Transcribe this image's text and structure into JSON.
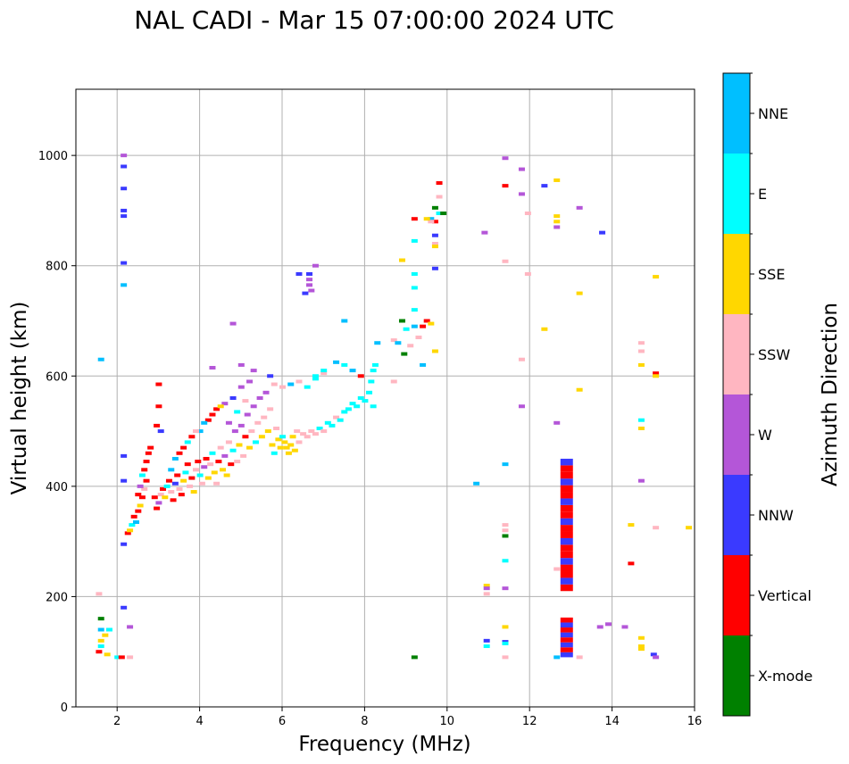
{
  "chart_data": {
    "type": "scatter",
    "title": "NAL CADI - Mar 15 07:00:00 2024 UTC",
    "xlabel": "Frequency (MHz)",
    "ylabel": "Virtual height (km)",
    "xlim": [
      1,
      16
    ],
    "ylim": [
      0,
      1120
    ],
    "xticks": [
      2,
      4,
      6,
      8,
      10,
      12,
      14,
      16
    ],
    "yticks": [
      0,
      200,
      400,
      600,
      800,
      1000
    ],
    "grid": true,
    "colorbar": {
      "title": "Azimuth Direction",
      "entries": [
        {
          "label": "X-mode",
          "color": "#008000"
        },
        {
          "label": "Vertical",
          "color": "#ff0000"
        },
        {
          "label": "NNW",
          "color": "#3a3aff"
        },
        {
          "label": "W",
          "color": "#b456d8"
        },
        {
          "label": "SSW",
          "color": "#ffb6c1"
        },
        {
          "label": "SSE",
          "color": "#ffd700"
        },
        {
          "label": "E",
          "color": "#00ffff"
        },
        {
          "label": "NNE",
          "color": "#00bfff"
        }
      ]
    },
    "points": [
      [
        1.55,
        100,
        "Vertical"
      ],
      [
        1.6,
        110,
        "E"
      ],
      [
        1.6,
        120,
        "SSE"
      ],
      [
        1.6,
        140,
        "NNE"
      ],
      [
        1.6,
        160,
        "X-mode"
      ],
      [
        1.55,
        205,
        "SSW"
      ],
      [
        1.6,
        630,
        "NNE"
      ],
      [
        1.75,
        95,
        "SSE"
      ],
      [
        1.8,
        140,
        "E"
      ],
      [
        1.7,
        130,
        "SSE"
      ],
      [
        2.0,
        90,
        "E"
      ],
      [
        2.1,
        90,
        "Vertical"
      ],
      [
        2.15,
        180,
        "NNW"
      ],
      [
        2.3,
        145,
        "W"
      ],
      [
        2.3,
        90,
        "SSW"
      ],
      [
        2.15,
        1000,
        "W"
      ],
      [
        2.15,
        980,
        "NNW"
      ],
      [
        2.15,
        940,
        "NNW"
      ],
      [
        2.15,
        900,
        "NNW"
      ],
      [
        2.15,
        890,
        "NNW"
      ],
      [
        2.15,
        805,
        "NNW"
      ],
      [
        2.15,
        765,
        "NNE"
      ],
      [
        2.15,
        455,
        "NNW"
      ],
      [
        2.15,
        410,
        "NNW"
      ],
      [
        2.15,
        295,
        "NNW"
      ],
      [
        2.25,
        315,
        "Vertical"
      ],
      [
        2.3,
        320,
        "SSE"
      ],
      [
        2.35,
        330,
        "E"
      ],
      [
        2.4,
        345,
        "Vertical"
      ],
      [
        2.45,
        335,
        "NNE"
      ],
      [
        2.5,
        355,
        "Vertical"
      ],
      [
        2.55,
        365,
        "SSE"
      ],
      [
        2.6,
        380,
        "Vertical"
      ],
      [
        2.65,
        395,
        "SSW"
      ],
      [
        2.7,
        410,
        "Vertical"
      ],
      [
        2.65,
        430,
        "Vertical"
      ],
      [
        2.7,
        445,
        "Vertical"
      ],
      [
        2.75,
        460,
        "Vertical"
      ],
      [
        2.8,
        470,
        "Vertical"
      ],
      [
        2.6,
        420,
        "E"
      ],
      [
        2.55,
        400,
        "W"
      ],
      [
        2.5,
        385,
        "Vertical"
      ],
      [
        2.9,
        380,
        "Vertical"
      ],
      [
        2.95,
        360,
        "Vertical"
      ],
      [
        3.0,
        370,
        "W"
      ],
      [
        3.05,
        385,
        "SSW"
      ],
      [
        3.1,
        395,
        "Vertical"
      ],
      [
        3.15,
        380,
        "SSE"
      ],
      [
        3.2,
        400,
        "E"
      ],
      [
        3.25,
        410,
        "Vertical"
      ],
      [
        3.3,
        390,
        "SSW"
      ],
      [
        3.35,
        375,
        "Vertical"
      ],
      [
        3.4,
        405,
        "NNW"
      ],
      [
        3.45,
        420,
        "Vertical"
      ],
      [
        3.5,
        395,
        "SSW"
      ],
      [
        3.55,
        385,
        "Vertical"
      ],
      [
        3.6,
        410,
        "SSE"
      ],
      [
        3.65,
        425,
        "E"
      ],
      [
        3.7,
        440,
        "Vertical"
      ],
      [
        3.75,
        400,
        "SSW"
      ],
      [
        3.8,
        415,
        "Vertical"
      ],
      [
        3.85,
        390,
        "SSE"
      ],
      [
        3.9,
        430,
        "SSW"
      ],
      [
        3.95,
        445,
        "Vertical"
      ],
      [
        4.0,
        420,
        "E"
      ],
      [
        4.05,
        405,
        "SSW"
      ],
      [
        4.1,
        435,
        "W"
      ],
      [
        4.15,
        450,
        "Vertical"
      ],
      [
        4.2,
        415,
        "SSE"
      ],
      [
        4.25,
        440,
        "SSW"
      ],
      [
        4.3,
        460,
        "E"
      ],
      [
        4.35,
        425,
        "SSE"
      ],
      [
        4.4,
        405,
        "SSW"
      ],
      [
        4.45,
        445,
        "Vertical"
      ],
      [
        4.5,
        470,
        "SSW"
      ],
      [
        4.55,
        430,
        "SSE"
      ],
      [
        4.6,
        455,
        "W"
      ],
      [
        4.65,
        420,
        "SSE"
      ],
      [
        4.7,
        480,
        "SSW"
      ],
      [
        4.75,
        440,
        "Vertical"
      ],
      [
        4.8,
        465,
        "E"
      ],
      [
        4.85,
        500,
        "W"
      ],
      [
        4.9,
        445,
        "SSW"
      ],
      [
        4.95,
        475,
        "SSE"
      ],
      [
        5.0,
        510,
        "W"
      ],
      [
        5.05,
        455,
        "SSW"
      ],
      [
        5.1,
        490,
        "Vertical"
      ],
      [
        5.15,
        530,
        "W"
      ],
      [
        5.2,
        470,
        "SSE"
      ],
      [
        5.25,
        500,
        "SSW"
      ],
      [
        5.3,
        545,
        "W"
      ],
      [
        5.35,
        480,
        "E"
      ],
      [
        5.4,
        515,
        "SSW"
      ],
      [
        5.45,
        560,
        "W"
      ],
      [
        5.5,
        490,
        "SSE"
      ],
      [
        5.55,
        525,
        "SSW"
      ],
      [
        5.6,
        570,
        "W"
      ],
      [
        5.65,
        500,
        "SSE"
      ],
      [
        5.7,
        540,
        "SSW"
      ],
      [
        5.75,
        475,
        "SSE"
      ],
      [
        5.8,
        460,
        "E"
      ],
      [
        5.85,
        505,
        "SSW"
      ],
      [
        5.9,
        485,
        "SSE"
      ],
      [
        5.95,
        470,
        "SSE"
      ],
      [
        6.0,
        490,
        "E"
      ],
      [
        3.4,
        450,
        "NNE"
      ],
      [
        3.6,
        470,
        "Vertical"
      ],
      [
        3.8,
        490,
        "Vertical"
      ],
      [
        4.0,
        500,
        "NNE"
      ],
      [
        4.2,
        520,
        "Vertical"
      ],
      [
        4.4,
        540,
        "Vertical"
      ],
      [
        4.6,
        550,
        "W"
      ],
      [
        4.8,
        560,
        "NNW"
      ],
      [
        5.0,
        580,
        "W"
      ],
      [
        5.2,
        590,
        "W"
      ],
      [
        3.3,
        430,
        "NNE"
      ],
      [
        3.5,
        460,
        "Vertical"
      ],
      [
        3.7,
        480,
        "E"
      ],
      [
        3.9,
        500,
        "SSW"
      ],
      [
        4.1,
        515,
        "NNE"
      ],
      [
        4.3,
        530,
        "Vertical"
      ],
      [
        4.5,
        545,
        "SSE"
      ],
      [
        4.7,
        515,
        "W"
      ],
      [
        4.9,
        535,
        "E"
      ],
      [
        5.1,
        555,
        "SSW"
      ],
      [
        3.0,
        585,
        "Vertical"
      ],
      [
        3.0,
        545,
        "Vertical"
      ],
      [
        2.95,
        510,
        "Vertical"
      ],
      [
        3.05,
        500,
        "NNW"
      ],
      [
        4.3,
        615,
        "W"
      ],
      [
        5.0,
        620,
        "W"
      ],
      [
        5.3,
        610,
        "W"
      ],
      [
        4.8,
        695,
        "W"
      ],
      [
        5.7,
        600,
        "NNW"
      ],
      [
        5.8,
        585,
        "SSW"
      ],
      [
        6.05,
        480,
        "SSE"
      ],
      [
        6.1,
        470,
        "SSE"
      ],
      [
        6.15,
        460,
        "SSE"
      ],
      [
        6.2,
        475,
        "SSE"
      ],
      [
        6.25,
        490,
        "SSE"
      ],
      [
        6.3,
        465,
        "SSE"
      ],
      [
        6.35,
        500,
        "SSW"
      ],
      [
        6.4,
        480,
        "SSW"
      ],
      [
        6.5,
        495,
        "SSW"
      ],
      [
        6.6,
        490,
        "SSW"
      ],
      [
        6.7,
        500,
        "SSW"
      ],
      [
        6.8,
        495,
        "SSW"
      ],
      [
        6.9,
        505,
        "E"
      ],
      [
        7.0,
        500,
        "SSW"
      ],
      [
        7.1,
        515,
        "E"
      ],
      [
        7.2,
        510,
        "E"
      ],
      [
        7.3,
        525,
        "SSW"
      ],
      [
        7.4,
        520,
        "E"
      ],
      [
        7.5,
        535,
        "E"
      ],
      [
        7.6,
        540,
        "E"
      ],
      [
        7.7,
        550,
        "E"
      ],
      [
        7.8,
        545,
        "E"
      ],
      [
        7.9,
        560,
        "E"
      ],
      [
        8.0,
        555,
        "E"
      ],
      [
        8.1,
        570,
        "E"
      ],
      [
        8.2,
        545,
        "E"
      ],
      [
        8.15,
        590,
        "E"
      ],
      [
        8.2,
        610,
        "E"
      ],
      [
        8.25,
        620,
        "E"
      ],
      [
        8.3,
        660,
        "NNE"
      ],
      [
        7.9,
        600,
        "Vertical"
      ],
      [
        7.7,
        610,
        "NNE"
      ],
      [
        7.5,
        620,
        "E"
      ],
      [
        7.3,
        625,
        "NNE"
      ],
      [
        7.0,
        605,
        "SSW"
      ],
      [
        6.8,
        595,
        "E"
      ],
      [
        6.6,
        580,
        "E"
      ],
      [
        6.4,
        590,
        "SSW"
      ],
      [
        6.2,
        585,
        "NNE"
      ],
      [
        6.0,
        580,
        "SSW"
      ],
      [
        6.65,
        785,
        "NNW"
      ],
      [
        6.65,
        775,
        "W"
      ],
      [
        6.65,
        765,
        "W"
      ],
      [
        6.7,
        755,
        "W"
      ],
      [
        6.55,
        750,
        "NNW"
      ],
      [
        6.8,
        800,
        "W"
      ],
      [
        6.4,
        785,
        "NNW"
      ],
      [
        7.5,
        700,
        "NNE"
      ],
      [
        7.0,
        610,
        "E"
      ],
      [
        6.8,
        600,
        "E"
      ],
      [
        8.7,
        590,
        "SSW"
      ],
      [
        8.7,
        665,
        "SSW"
      ],
      [
        8.8,
        660,
        "NNE"
      ],
      [
        8.9,
        700,
        "X-mode"
      ],
      [
        8.95,
        640,
        "X-mode"
      ],
      [
        9.0,
        685,
        "E"
      ],
      [
        9.1,
        655,
        "SSW"
      ],
      [
        9.2,
        690,
        "NNE"
      ],
      [
        9.3,
        670,
        "SSW"
      ],
      [
        9.4,
        690,
        "Vertical"
      ],
      [
        9.5,
        700,
        "Vertical"
      ],
      [
        9.6,
        695,
        "SSE"
      ],
      [
        9.7,
        645,
        "SSE"
      ],
      [
        9.2,
        720,
        "E"
      ],
      [
        9.2,
        760,
        "E"
      ],
      [
        9.2,
        785,
        "E"
      ],
      [
        9.2,
        845,
        "E"
      ],
      [
        9.2,
        885,
        "Vertical"
      ],
      [
        8.9,
        810,
        "SSE"
      ],
      [
        9.4,
        620,
        "NNE"
      ],
      [
        9.6,
        885,
        "NNE"
      ],
      [
        9.7,
        880,
        "Vertical"
      ],
      [
        9.7,
        855,
        "NNW"
      ],
      [
        9.7,
        840,
        "SSW"
      ],
      [
        9.7,
        835,
        "SSE"
      ],
      [
        9.8,
        895,
        "E"
      ],
      [
        9.9,
        895,
        "X-mode"
      ],
      [
        9.8,
        925,
        "SSW"
      ],
      [
        9.8,
        950,
        "Vertical"
      ],
      [
        9.7,
        905,
        "X-mode"
      ],
      [
        9.7,
        795,
        "NNW"
      ],
      [
        9.6,
        880,
        "SSW"
      ],
      [
        9.5,
        885,
        "SSE"
      ],
      [
        9.2,
        90,
        "X-mode"
      ],
      [
        10.7,
        405,
        "NNE"
      ],
      [
        10.9,
        860,
        "W"
      ],
      [
        10.95,
        220,
        "SSE"
      ],
      [
        10.95,
        215,
        "W"
      ],
      [
        10.95,
        205,
        "SSW"
      ],
      [
        10.95,
        120,
        "NNW"
      ],
      [
        10.95,
        110,
        "E"
      ],
      [
        11.4,
        995,
        "W"
      ],
      [
        11.4,
        945,
        "Vertical"
      ],
      [
        11.4,
        808,
        "SSW"
      ],
      [
        11.4,
        440,
        "NNE"
      ],
      [
        11.4,
        330,
        "SSW"
      ],
      [
        11.4,
        320,
        "SSW"
      ],
      [
        11.4,
        310,
        "X-mode"
      ],
      [
        11.4,
        265,
        "E"
      ],
      [
        11.4,
        215,
        "W"
      ],
      [
        11.4,
        145,
        "SSE"
      ],
      [
        11.4,
        118,
        "NNW"
      ],
      [
        11.4,
        115,
        "E"
      ],
      [
        11.4,
        90,
        "SSW"
      ],
      [
        11.8,
        975,
        "W"
      ],
      [
        11.8,
        930,
        "W"
      ],
      [
        11.8,
        630,
        "SSW"
      ],
      [
        11.8,
        545,
        "W"
      ],
      [
        11.95,
        785,
        "SSW"
      ],
      [
        11.95,
        895,
        "SSW"
      ],
      [
        12.35,
        945,
        "NNW"
      ],
      [
        12.35,
        685,
        "SSE"
      ],
      [
        12.65,
        955,
        "SSE"
      ],
      [
        12.65,
        890,
        "SSE"
      ],
      [
        12.65,
        880,
        "SSE"
      ],
      [
        12.65,
        870,
        "W"
      ],
      [
        12.65,
        515,
        "W"
      ],
      [
        12.65,
        250,
        "SSW"
      ],
      [
        12.65,
        90,
        "NNE"
      ],
      [
        13.2,
        905,
        "W"
      ],
      [
        13.2,
        750,
        "SSE"
      ],
      [
        13.2,
        575,
        "SSE"
      ],
      [
        13.2,
        90,
        "SSW"
      ],
      [
        13.75,
        860,
        "NNW"
      ],
      [
        13.7,
        145,
        "W"
      ],
      [
        13.9,
        150,
        "W"
      ],
      [
        14.45,
        330,
        "SSE"
      ],
      [
        14.45,
        260,
        "Vertical"
      ],
      [
        14.7,
        660,
        "SSW"
      ],
      [
        14.7,
        645,
        "SSW"
      ],
      [
        14.7,
        620,
        "SSE"
      ],
      [
        14.7,
        520,
        "E"
      ],
      [
        14.7,
        505,
        "SSE"
      ],
      [
        14.7,
        410,
        "W"
      ],
      [
        14.7,
        125,
        "SSE"
      ],
      [
        14.7,
        110,
        "SSE"
      ],
      [
        14.7,
        105,
        "SSE"
      ],
      [
        15.05,
        780,
        "SSE"
      ],
      [
        15.05,
        605,
        "Vertical"
      ],
      [
        15.05,
        600,
        "SSE"
      ],
      [
        15.05,
        325,
        "SSW"
      ],
      [
        15.0,
        95,
        "NNW"
      ],
      [
        15.05,
        90,
        "W"
      ],
      [
        15.85,
        325,
        "SSE"
      ],
      [
        14.3,
        145,
        "W"
      ]
    ]
  }
}
